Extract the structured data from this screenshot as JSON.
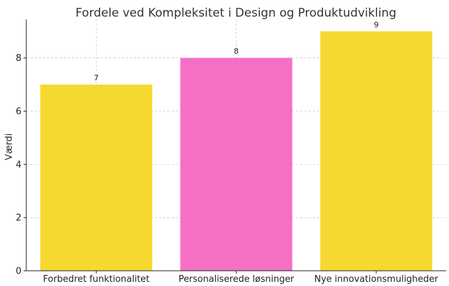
{
  "chart_data": {
    "type": "bar",
    "title": "Fordele ved Kompleksitet i Design og Produktudvikling",
    "xlabel": "",
    "ylabel": "Værdi",
    "categories": [
      "Forbedret funktionalitet",
      "Personaliserede løsninger",
      "Nye innovationsmuligheder"
    ],
    "values": [
      7,
      8,
      9
    ],
    "colors": [
      "#f5d930",
      "#f570c4",
      "#f5d930"
    ],
    "ylim": [
      0,
      9.45
    ],
    "yticks": [
      0,
      2,
      4,
      6,
      8
    ],
    "grid": true,
    "data_labels": true
  }
}
